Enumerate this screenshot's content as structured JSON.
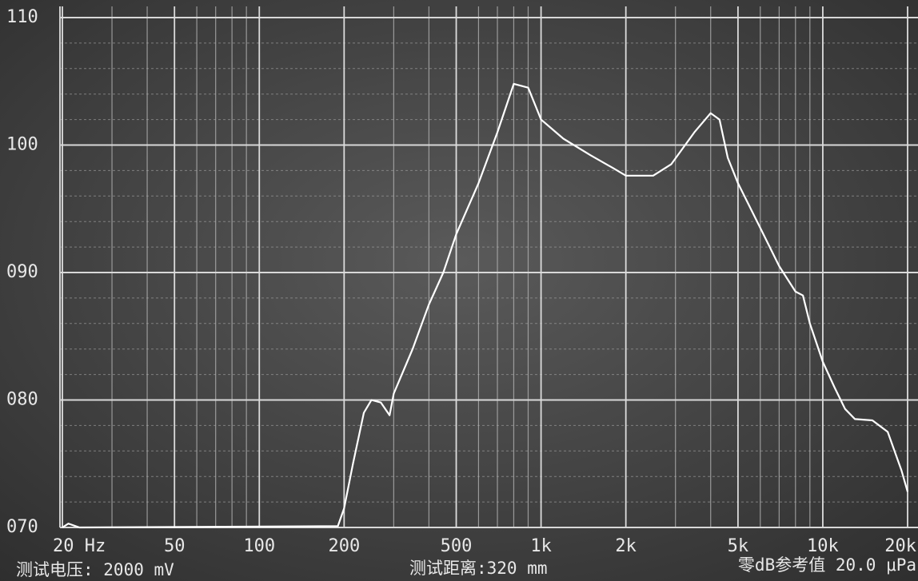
{
  "chart_data": {
    "type": "line",
    "x": [
      20,
      21,
      23,
      190,
      200,
      215,
      235,
      250,
      270,
      290,
      300,
      350,
      400,
      450,
      500,
      600,
      700,
      800,
      900,
      1000,
      1200,
      1500,
      1800,
      2000,
      2500,
      2900,
      3500,
      4000,
      4300,
      4600,
      5000,
      6000,
      7000,
      8000,
      8500,
      9000,
      10000,
      11000,
      12000,
      13000,
      15000,
      17000,
      19000,
      20000
    ],
    "series": [
      {
        "color": "#ffffff",
        "values": [
          70.0,
          70.3,
          70.0,
          70.1,
          71.5,
          75,
          79,
          80,
          79.8,
          78.8,
          80.5,
          84,
          87.5,
          90,
          93,
          97,
          101,
          104.8,
          104.5,
          102,
          100.5,
          99.2,
          98.2,
          97.6,
          97.6,
          98.5,
          101,
          102.5,
          102,
          99,
          97,
          93.5,
          90.5,
          88.5,
          88.2,
          86,
          83,
          81,
          79.3,
          78.5,
          78.4,
          77.5,
          74.5,
          72.8
        ]
      }
    ],
    "xlim": [
      20,
      20000
    ],
    "ylim": [
      70,
      110
    ],
    "log_x": true,
    "grid": true,
    "xticks": [
      {
        "value": 20,
        "label": "20 Hz"
      },
      50,
      100,
      200,
      500,
      {
        "value": 1000,
        "label": "1k"
      },
      {
        "value": 2000,
        "label": "2k"
      },
      {
        "value": 5000,
        "label": "5k"
      },
      {
        "value": 10000,
        "label": "10k"
      },
      {
        "value": 20000,
        "label": "20k"
      }
    ],
    "yticks": [
      {
        "value": 70,
        "label": "070"
      },
      {
        "value": 80,
        "label": "080"
      },
      {
        "value": 90,
        "label": "090"
      },
      {
        "value": 100,
        "label": "100"
      },
      {
        "value": 110,
        "label": "110"
      }
    ],
    "notes": [
      "测试电压: 2000 mV",
      "测试距离:320 mm",
      "零dB参考值 20.0 μPa"
    ]
  }
}
